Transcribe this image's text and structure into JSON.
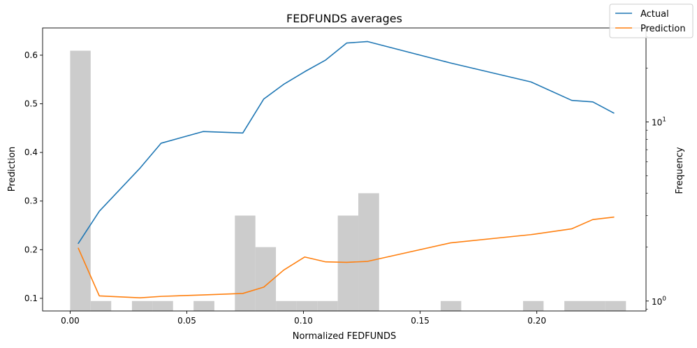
{
  "chart_data": {
    "type": "line",
    "title": "FEDFUNDS averages",
    "xlabel": "Normalized FEDFUNDS",
    "ylabel": "Prediction",
    "y2label": "Frequency",
    "xlim": [
      -0.0118,
      0.2468
    ],
    "ylim": [
      0.074,
      0.656
    ],
    "y2lim": [
      0.88,
      33.5
    ],
    "y2scale": "log",
    "xticks": [
      {
        "value": 0.0,
        "label": "0.00"
      },
      {
        "value": 0.05,
        "label": "0.05"
      },
      {
        "value": 0.1,
        "label": "0.10"
      },
      {
        "value": 0.15,
        "label": "0.15"
      },
      {
        "value": 0.2,
        "label": "0.20"
      }
    ],
    "yticks": [
      {
        "value": 0.1,
        "label": "0.1"
      },
      {
        "value": 0.2,
        "label": "0.2"
      },
      {
        "value": 0.3,
        "label": "0.3"
      },
      {
        "value": 0.4,
        "label": "0.4"
      },
      {
        "value": 0.5,
        "label": "0.5"
      },
      {
        "value": 0.6,
        "label": "0.6"
      }
    ],
    "y2ticks": [
      {
        "value": 1,
        "base": "10",
        "exp": "0"
      },
      {
        "value": 10,
        "base": "10",
        "exp": "1"
      }
    ],
    "legend": "top-right",
    "grid": false,
    "histogram": {
      "color": "#cccccc",
      "bins": [
        {
          "x0": 0.0,
          "x1": 0.0088,
          "count": 25
        },
        {
          "x0": 0.0088,
          "x1": 0.0176,
          "count": 1
        },
        {
          "x0": 0.0265,
          "x1": 0.0353,
          "count": 1
        },
        {
          "x0": 0.0353,
          "x1": 0.0441,
          "count": 1
        },
        {
          "x0": 0.0529,
          "x1": 0.0618,
          "count": 1
        },
        {
          "x0": 0.0706,
          "x1": 0.0794,
          "count": 3
        },
        {
          "x0": 0.0794,
          "x1": 0.0882,
          "count": 2
        },
        {
          "x0": 0.0882,
          "x1": 0.0971,
          "count": 1
        },
        {
          "x0": 0.0971,
          "x1": 0.1059,
          "count": 1
        },
        {
          "x0": 0.1059,
          "x1": 0.1147,
          "count": 1
        },
        {
          "x0": 0.1147,
          "x1": 0.1235,
          "count": 3
        },
        {
          "x0": 0.1235,
          "x1": 0.1324,
          "count": 4
        },
        {
          "x0": 0.1588,
          "x1": 0.1676,
          "count": 1
        },
        {
          "x0": 0.1941,
          "x1": 0.2029,
          "count": 1
        },
        {
          "x0": 0.2118,
          "x1": 0.2206,
          "count": 1
        },
        {
          "x0": 0.2206,
          "x1": 0.2294,
          "count": 1
        },
        {
          "x0": 0.2294,
          "x1": 0.2382,
          "count": 1
        }
      ]
    },
    "series": [
      {
        "name": "Actual",
        "color": "#1f77b4",
        "x": [
          0.0035,
          0.0125,
          0.03,
          0.039,
          0.057,
          0.074,
          0.083,
          0.0915,
          0.1005,
          0.1095,
          0.1185,
          0.1275,
          0.163,
          0.1975,
          0.215,
          0.224,
          0.233
        ],
        "y": [
          0.213,
          0.279,
          0.368,
          0.419,
          0.443,
          0.44,
          0.51,
          0.54,
          0.566,
          0.59,
          0.625,
          0.628,
          0.584,
          0.545,
          0.507,
          0.504,
          0.481
        ]
      },
      {
        "name": "Prediction",
        "color": "#ff7f0e",
        "x": [
          0.0035,
          0.0125,
          0.03,
          0.039,
          0.057,
          0.074,
          0.083,
          0.0915,
          0.1005,
          0.1095,
          0.1185,
          0.1275,
          0.163,
          0.1975,
          0.215,
          0.224,
          0.233
        ],
        "y": [
          0.203,
          0.105,
          0.101,
          0.104,
          0.107,
          0.11,
          0.123,
          0.158,
          0.185,
          0.175,
          0.174,
          0.176,
          0.214,
          0.231,
          0.243,
          0.262,
          0.267
        ]
      }
    ]
  }
}
